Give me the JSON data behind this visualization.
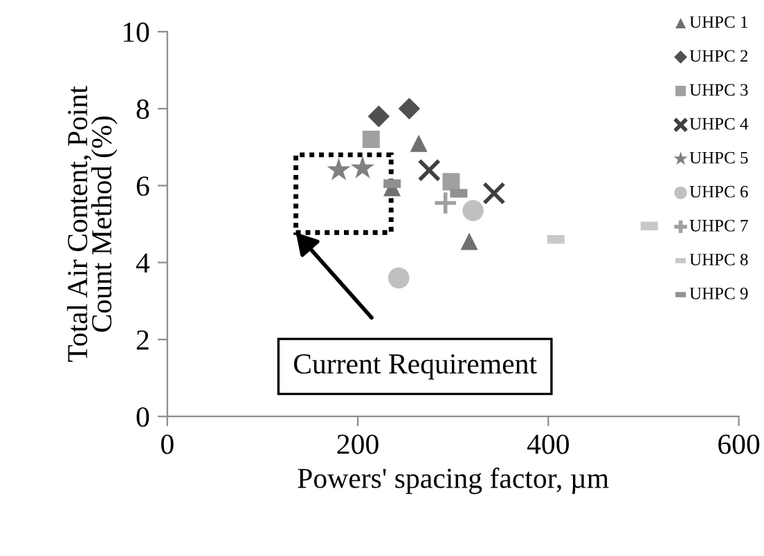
{
  "chart_data": {
    "type": "scatter",
    "xlabel": "Powers' spacing factor, µm",
    "ylabel": "Total Air Content, Point\nCount Method (%)",
    "xlim": [
      0,
      600
    ],
    "xticks": [
      0,
      200,
      400,
      600
    ],
    "ylim": [
      0,
      10
    ],
    "yticks": [
      0,
      2,
      4,
      6,
      8,
      10
    ],
    "grid": false,
    "legend": "top right",
    "series": [
      {
        "name": "UHPC 1",
        "color": "#707070",
        "marker": "triangle",
        "x": [
          264,
          236,
          317
        ],
        "values": [
          7.1,
          5.95,
          4.55
        ]
      },
      {
        "name": "UHPC 2",
        "color": "#505050",
        "marker": "diamond",
        "x": [
          222,
          254
        ],
        "values": [
          7.8,
          8.0
        ]
      },
      {
        "name": "UHPC 3",
        "color": "#a0a0a0",
        "marker": "square",
        "x": [
          214,
          298
        ],
        "values": [
          7.2,
          6.1
        ]
      },
      {
        "name": "UHPC 4",
        "color": "#404040",
        "marker": "cross",
        "x": [
          275,
          343
        ],
        "values": [
          6.4,
          5.8
        ]
      },
      {
        "name": "UHPC 5",
        "color": "#808080",
        "marker": "star",
        "x": [
          180,
          205
        ],
        "values": [
          6.4,
          6.45
        ]
      },
      {
        "name": "UHPC 6",
        "color": "#c0c0c0",
        "marker": "circle",
        "x": [
          321,
          243
        ],
        "values": [
          5.35,
          3.6
        ]
      },
      {
        "name": "UHPC 7",
        "color": "#a0a0a0",
        "marker": "plus",
        "x": [
          292
        ],
        "values": [
          5.55
        ]
      },
      {
        "name": "UHPC 8",
        "color": "#c8c8c8",
        "x": [
          408,
          506
        ],
        "values": [
          4.6,
          4.95
        ]
      },
      {
        "name": "UHPC 9",
        "color": "#909090",
        "x": [
          236,
          306
        ],
        "values": [
          6.05,
          5.8
        ]
      }
    ],
    "annotations": [
      "Current Requirement"
    ]
  }
}
